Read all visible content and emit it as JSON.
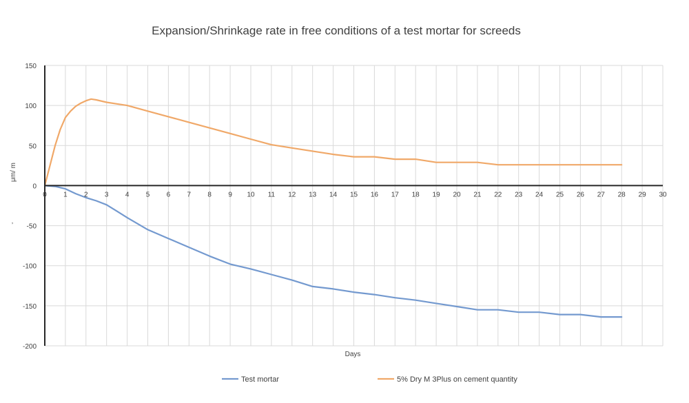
{
  "chart_data": {
    "type": "line",
    "title": "Expansion/Shrinkage rate in free conditions of a test mortar for screeds",
    "xlabel": "Days",
    "ylabel": "μm/ m",
    "ylabel_extra": "’",
    "xlim": [
      0,
      30
    ],
    "ylim": [
      -200,
      150
    ],
    "x_ticks": [
      0,
      1,
      2,
      3,
      4,
      5,
      6,
      7,
      8,
      9,
      10,
      11,
      12,
      13,
      14,
      15,
      16,
      17,
      18,
      19,
      20,
      21,
      22,
      23,
      24,
      25,
      26,
      27,
      28,
      29,
      30
    ],
    "y_ticks": [
      150,
      100,
      50,
      0,
      -50,
      -100,
      -150,
      -200
    ],
    "grid": true,
    "legend_position": "bottom",
    "series": [
      {
        "name": "Test mortar",
        "color": "#7399cf",
        "x": [
          0,
          0.5,
          1,
          1.5,
          2,
          2.5,
          3,
          3.5,
          4,
          5,
          6,
          7,
          8,
          9,
          10,
          11,
          12,
          13,
          14,
          15,
          16,
          17,
          18,
          19,
          20,
          21,
          22,
          23,
          24,
          25,
          26,
          27,
          28
        ],
        "y": [
          0,
          -1,
          -4,
          -10,
          -15,
          -19,
          -24,
          -32,
          -40,
          -55,
          -66,
          -77,
          -88,
          -98,
          -104,
          -111,
          -118,
          -126,
          -129,
          -133,
          -136,
          -140,
          -143,
          -147,
          -151,
          -155,
          -155,
          -158,
          -158,
          -161,
          -161,
          -164,
          -164
        ]
      },
      {
        "name": "5% Dry M 3Plus on cement quantity",
        "color": "#f0a868",
        "x": [
          0,
          0.25,
          0.5,
          0.75,
          1,
          1.25,
          1.5,
          1.75,
          2,
          2.25,
          2.5,
          3,
          3.5,
          4,
          5,
          6,
          7,
          8,
          9,
          10,
          11,
          12,
          13,
          14,
          15,
          16,
          17,
          18,
          19,
          20,
          21,
          22,
          23,
          24,
          25,
          26,
          27,
          28
        ],
        "y": [
          0,
          25,
          50,
          70,
          85,
          93,
          99,
          103,
          106,
          108,
          107,
          104,
          102,
          100,
          93,
          86,
          79,
          72,
          65,
          58,
          51,
          47,
          43,
          39,
          36,
          36,
          33,
          33,
          29,
          29,
          29,
          26,
          26,
          26,
          26,
          26,
          26,
          26
        ]
      }
    ]
  }
}
